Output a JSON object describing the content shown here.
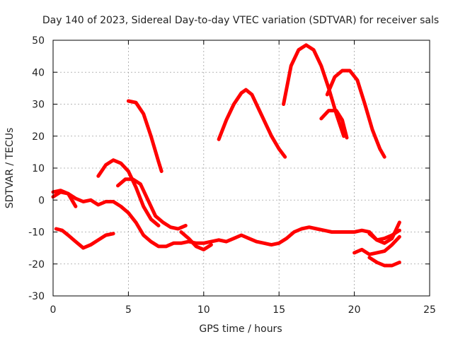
{
  "chart_data": {
    "type": "line",
    "title": "Day 140 of 2023, Sidereal Day-to-day VTEC variation (SDTVAR) for receiver sals",
    "xlabel": "GPS time / hours",
    "ylabel": "SDTVAR / TECUs",
    "xlim": [
      0,
      25
    ],
    "ylim": [
      -30,
      50
    ],
    "xticks": [
      0,
      5,
      10,
      15,
      20,
      25
    ],
    "yticks": [
      -30,
      -20,
      -10,
      0,
      10,
      20,
      30,
      40,
      50
    ],
    "grid": true,
    "series_color": "#ff0000",
    "grid_color": "#a0a0a0",
    "series": [
      {
        "name": "s1",
        "x": [
          0,
          0.5,
          1,
          1.5,
          2,
          2.5,
          3,
          3.5,
          4,
          4.5,
          5,
          5.5,
          6,
          6.5,
          7,
          7.5,
          8,
          8.5,
          9,
          9.5,
          10,
          10.5,
          11,
          11.5,
          12,
          12.5,
          13,
          13.5,
          14,
          14.5,
          15,
          15.5,
          16,
          16.5,
          17,
          17.5,
          18,
          18.5,
          19,
          19.5,
          20,
          20.5,
          21,
          21.5,
          22,
          22.5,
          23
        ],
        "y": [
          1,
          2.5,
          2,
          0.5,
          -0.5,
          0,
          -1.5,
          -0.5,
          -0.5,
          -2,
          -4,
          -7,
          -11,
          -13,
          -14.5,
          -14.5,
          -13.5,
          -13.5,
          -13,
          -13.5,
          -13.5,
          -13,
          -12.5,
          -13,
          -12,
          -11,
          -12,
          -13,
          -13.5,
          -14,
          -13.5,
          -12,
          -10,
          -9,
          -8.5,
          -9,
          -9.5,
          -10,
          -10,
          -10,
          -10,
          -9.5,
          -10,
          -12.5,
          -12,
          -11,
          -9.5
        ]
      },
      {
        "name": "s2",
        "x": [
          0,
          0.5,
          1,
          1.5
        ],
        "y": [
          2.5,
          3,
          2,
          -2
        ]
      },
      {
        "name": "s3",
        "x": [
          0.2,
          0.6,
          1,
          1.5,
          2,
          2.5,
          3,
          3.5,
          4
        ],
        "y": [
          -9,
          -9.5,
          -11,
          -13,
          -15,
          -14,
          -12.5,
          -11,
          -10.5
        ]
      },
      {
        "name": "s4",
        "x": [
          3,
          3.5,
          4,
          4.5,
          5,
          5.5,
          6,
          6.5,
          7
        ],
        "y": [
          7.5,
          11,
          12.5,
          11.5,
          9,
          4,
          -2,
          -6,
          -8
        ]
      },
      {
        "name": "s5",
        "x": [
          4.3,
          4.8,
          5.3,
          5.8,
          6.3,
          6.8,
          7.3,
          7.8,
          8.3,
          8.8
        ],
        "y": [
          4.5,
          6.5,
          6.5,
          5,
          0,
          -5,
          -7,
          -8.5,
          -9,
          -8
        ]
      },
      {
        "name": "s6",
        "x": [
          5,
          5.5,
          6,
          6.5,
          7,
          7.2
        ],
        "y": [
          31,
          30.5,
          27,
          20,
          12,
          9
        ]
      },
      {
        "name": "s7",
        "x": [
          8.5,
          9,
          9.5,
          10,
          10.5
        ],
        "y": [
          -10,
          -12,
          -14.5,
          -15.5,
          -14
        ]
      },
      {
        "name": "s8",
        "x": [
          11,
          11.5,
          12,
          12.5,
          12.8,
          13.2,
          13.6,
          14,
          14.5,
          15,
          15.4
        ],
        "y": [
          19,
          25,
          30,
          33.5,
          34.5,
          33,
          29,
          25,
          20,
          16,
          13.5
        ]
      },
      {
        "name": "s9",
        "x": [
          15.3,
          15.8,
          16.3,
          16.8,
          17.3,
          17.8,
          18.3,
          18.8,
          19.3
        ],
        "y": [
          30,
          42,
          47,
          48.5,
          47,
          42,
          35,
          27,
          20
        ]
      },
      {
        "name": "s10",
        "x": [
          17.8,
          18.3,
          18.8,
          19.2,
          19.5
        ],
        "y": [
          25.5,
          28,
          28,
          25,
          19.5
        ]
      },
      {
        "name": "s11",
        "x": [
          18.2,
          18.7,
          19.2,
          19.7,
          20.2,
          20.7,
          21.2,
          21.7,
          22
        ],
        "y": [
          33,
          38.5,
          40.5,
          40.5,
          37.5,
          30,
          22,
          16,
          13.5
        ]
      },
      {
        "name": "s12",
        "x": [
          20,
          20.5,
          21,
          21.5,
          22,
          22.5,
          23
        ],
        "y": [
          -16.5,
          -15.5,
          -17,
          -16.5,
          -16,
          -14,
          -11.5
        ]
      },
      {
        "name": "s13",
        "x": [
          21,
          21.5,
          22,
          22.5,
          23
        ],
        "y": [
          -18,
          -19.5,
          -20.5,
          -20.5,
          -19.5
        ]
      },
      {
        "name": "s14",
        "x": [
          21,
          21.5,
          22,
          22.5,
          23
        ],
        "y": [
          -10.5,
          -12.5,
          -13.5,
          -12,
          -7
        ]
      }
    ]
  }
}
